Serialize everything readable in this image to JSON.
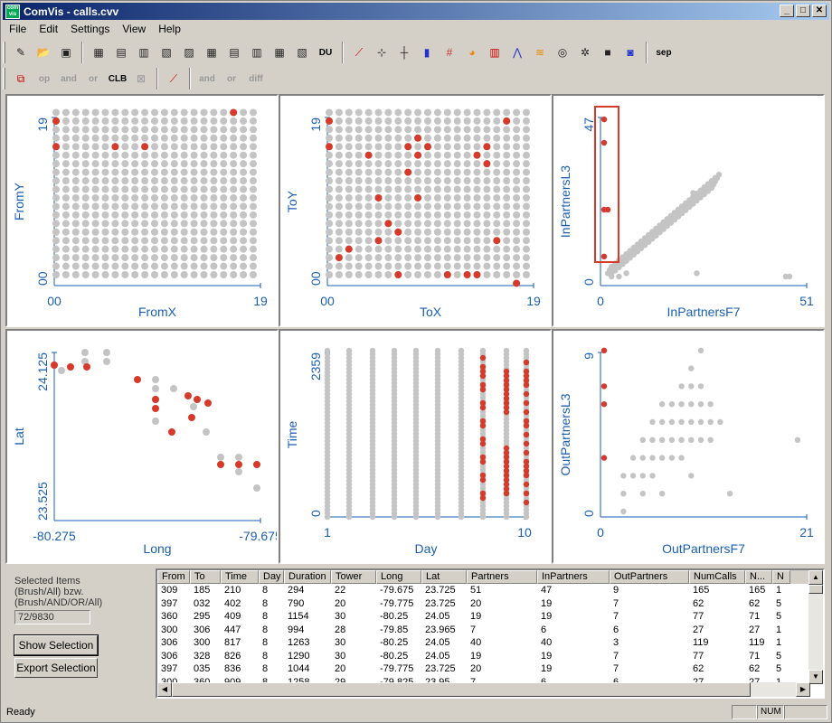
{
  "window": {
    "title": "ComVis - calls.cvv",
    "app_icon_text": "com vis"
  },
  "menu": [
    "File",
    "Edit",
    "Settings",
    "View",
    "Help"
  ],
  "toolbar2": {
    "op": "op",
    "and": "and",
    "or": "or",
    "clb": "CLB",
    "and2": "and",
    "or2": "or",
    "diff": "diff"
  },
  "toolbar1": {
    "du": "DU",
    "sep": "sep"
  },
  "colors": {
    "selected": "#d63a2a",
    "unselected": "#c4c4c4",
    "axis": "#1a5fb4",
    "brush": "#d63a2a"
  },
  "panels": [
    {
      "xlabel": "FromX",
      "ylabel": "FromY",
      "xmin": "00",
      "xmax": "19",
      "ymin": "00",
      "ymax": "19"
    },
    {
      "xlabel": "ToX",
      "ylabel": "ToY",
      "xmin": "00",
      "xmax": "19",
      "ymin": "00",
      "ymax": "19"
    },
    {
      "xlabel": "InPartnersF7",
      "ylabel": "InPartnersL3",
      "xmin": "0",
      "xmax": "51",
      "ymin": "0",
      "ymax": "47"
    },
    {
      "xlabel": "Long",
      "ylabel": "Lat",
      "xmin": "-80.275",
      "xmax": "-79.675",
      "ymin": "23.525",
      "ymax": "24.125"
    },
    {
      "xlabel": "Day",
      "ylabel": "Time",
      "xmin": "1",
      "xmax": "10",
      "ymin": "0",
      "ymax": "2359"
    },
    {
      "xlabel": "OutPartnersF7",
      "ylabel": "OutPartnersL3",
      "xmin": "0",
      "xmax": "21",
      "ymin": "0",
      "ymax": "9"
    }
  ],
  "selection": {
    "label_line1": "Selected Items",
    "label_line2": "(Brush/All) bzw.",
    "label_line3": "(Brush/AND/OR/All)",
    "count": "72/9830",
    "show_button": "Show Selection",
    "export_button": "Export Selection"
  },
  "table": {
    "columns": [
      "From",
      "To",
      "Time",
      "Day",
      "Duration",
      "Tower",
      "Long",
      "Lat",
      "Partners",
      "InPartners",
      "OutPartners",
      "NumCalls",
      "N...",
      "N"
    ],
    "rows": [
      [
        "309",
        "185",
        "210",
        "8",
        "294",
        "22",
        "-79.675",
        "23.725",
        "51",
        "47",
        "9",
        "165",
        "165",
        "1"
      ],
      [
        "397",
        "032",
        "402",
        "8",
        "790",
        "20",
        "-79.775",
        "23.725",
        "20",
        "19",
        "7",
        "62",
        "62",
        "5"
      ],
      [
        "360",
        "295",
        "409",
        "8",
        "1154",
        "30",
        "-80.25",
        "24.05",
        "19",
        "19",
        "7",
        "77",
        "71",
        "5"
      ],
      [
        "300",
        "306",
        "447",
        "8",
        "994",
        "28",
        "-79.85",
        "23.965",
        "7",
        "6",
        "6",
        "27",
        "27",
        "1"
      ],
      [
        "306",
        "300",
        "817",
        "8",
        "1263",
        "30",
        "-80.25",
        "24.05",
        "40",
        "40",
        "3",
        "119",
        "119",
        "1"
      ],
      [
        "306",
        "328",
        "826",
        "8",
        "1290",
        "30",
        "-80.25",
        "24.05",
        "19",
        "19",
        "7",
        "77",
        "71",
        "5"
      ],
      [
        "397",
        "035",
        "836",
        "8",
        "1044",
        "20",
        "-79.775",
        "23.725",
        "20",
        "19",
        "7",
        "62",
        "62",
        "5"
      ],
      [
        "300",
        "360",
        "909",
        "8",
        "1258",
        "29",
        "-79.825",
        "23.95",
        "7",
        "6",
        "6",
        "27",
        "27",
        "1"
      ]
    ]
  },
  "status": {
    "text": "Ready",
    "num": "NUM"
  },
  "chart_data": [
    {
      "type": "scatter",
      "xlabel": "FromX",
      "ylabel": "FromY",
      "xlim": [
        0,
        19
      ],
      "ylim": [
        0,
        19
      ],
      "grid_points": "all integer pairs 0-19",
      "selected": [
        [
          0,
          18
        ],
        [
          18,
          19
        ],
        [
          0,
          15
        ],
        [
          6,
          15
        ],
        [
          9,
          15
        ]
      ]
    },
    {
      "type": "scatter",
      "xlabel": "ToX",
      "ylabel": "ToY",
      "xlim": [
        0,
        19
      ],
      "ylim": [
        0,
        19
      ],
      "grid_points": "all integer pairs 0-19",
      "selected": [
        [
          0,
          18
        ],
        [
          18,
          18
        ],
        [
          0,
          15
        ],
        [
          8,
          15
        ],
        [
          9,
          16
        ],
        [
          10,
          15
        ],
        [
          16,
          15
        ],
        [
          4,
          14
        ],
        [
          9,
          14
        ],
        [
          15,
          14
        ],
        [
          16,
          13
        ],
        [
          8,
          12
        ],
        [
          5,
          9
        ],
        [
          9,
          9
        ],
        [
          6,
          6
        ],
        [
          7,
          5
        ],
        [
          5,
          4
        ],
        [
          17,
          4
        ],
        [
          2,
          3
        ],
        [
          1,
          2
        ],
        [
          7,
          0
        ],
        [
          12,
          0
        ],
        [
          14,
          0
        ],
        [
          15,
          0
        ],
        [
          19,
          -1
        ]
      ]
    },
    {
      "type": "scatter",
      "xlabel": "InPartnersF7",
      "ylabel": "InPartnersL3",
      "xlim": [
        0,
        51
      ],
      "ylim": [
        0,
        47
      ],
      "selected": [
        [
          0,
          47
        ],
        [
          0,
          40
        ],
        [
          0,
          20
        ],
        [
          1,
          20
        ],
        [
          0,
          6
        ]
      ],
      "unselected_trend": "diagonal x≈y up to ~30, plus outliers near (24,25),(25,1),(49,0)"
    },
    {
      "type": "scatter",
      "xlabel": "Long",
      "ylabel": "Lat",
      "xlim": [
        -80.275,
        -79.675
      ],
      "ylim": [
        23.525,
        24.125
      ]
    },
    {
      "type": "scatter",
      "xlabel": "Day",
      "ylabel": "Time",
      "xlim": [
        1,
        10
      ],
      "ylim": [
        0,
        2359
      ],
      "selected_day": [
        8,
        9,
        10
      ]
    },
    {
      "type": "scatter",
      "xlabel": "OutPartnersF7",
      "ylabel": "OutPartnersL3",
      "xlim": [
        0,
        21
      ],
      "ylim": [
        0,
        9
      ],
      "selected": [
        [
          0,
          9
        ],
        [
          0,
          7
        ],
        [
          0,
          6
        ],
        [
          0,
          3
        ]
      ]
    }
  ]
}
